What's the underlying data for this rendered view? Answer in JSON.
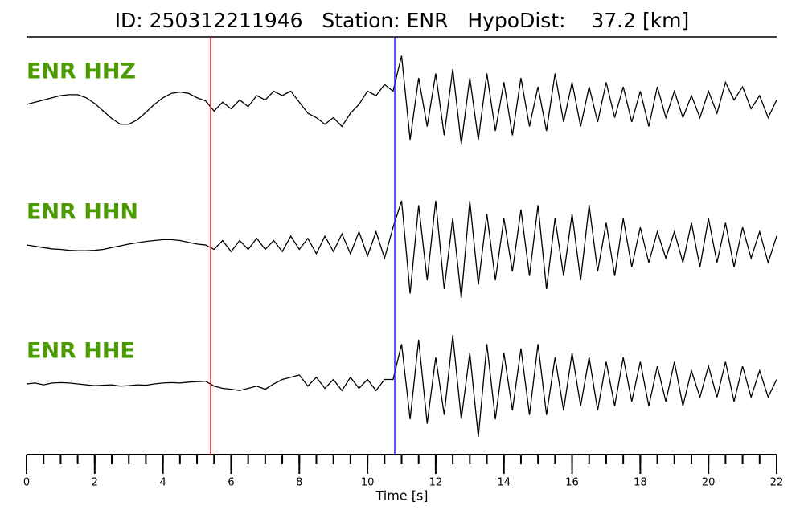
{
  "chart_data": {
    "type": "seismogram",
    "title": "ID: 250312211946   Station: ENR   HypoDist:    37.2 [km]",
    "xlabel": "Time [s]",
    "xlim": [
      0,
      22
    ],
    "xticks": [
      0,
      2,
      4,
      6,
      8,
      10,
      12,
      14,
      16,
      18,
      20,
      22
    ],
    "xminorticks": [
      0,
      0.5,
      1,
      1.5,
      2,
      2.5,
      3,
      3.5,
      4,
      4.5,
      5,
      5.5,
      6,
      6.5,
      7,
      7.5,
      8,
      8.5,
      9,
      9.5,
      10,
      10.5,
      11,
      11.5,
      12,
      12.5,
      13,
      13.5,
      14,
      14.5,
      15,
      15.5,
      16,
      16.5,
      17,
      17.5,
      18,
      18.5,
      19,
      19.5,
      20,
      20.5,
      21,
      21.5,
      22
    ],
    "label_color": "#4a9a00",
    "markers": [
      {
        "x": 5.4,
        "color": "#e31a1c"
      },
      {
        "x": 10.8,
        "color": "#1f1fff"
      }
    ],
    "x": [
      0,
      0.25,
      0.5,
      0.75,
      1,
      1.25,
      1.5,
      1.75,
      2,
      2.25,
      2.5,
      2.75,
      3,
      3.25,
      3.5,
      3.75,
      4,
      4.25,
      4.5,
      4.75,
      5,
      5.25,
      5.5,
      5.75,
      6,
      6.25,
      6.5,
      6.75,
      7,
      7.25,
      7.5,
      7.75,
      8,
      8.25,
      8.5,
      8.75,
      9,
      9.25,
      9.5,
      9.75,
      10,
      10.25,
      10.5,
      10.75,
      11,
      11.25,
      11.5,
      11.75,
      12,
      12.25,
      12.5,
      12.75,
      13,
      13.25,
      13.5,
      13.75,
      14,
      14.25,
      14.5,
      14.75,
      15,
      15.25,
      15.5,
      15.75,
      16,
      16.25,
      16.5,
      16.75,
      17,
      17.25,
      17.5,
      17.75,
      18,
      18.25,
      18.5,
      18.75,
      19,
      19.25,
      19.5,
      19.75,
      20,
      20.25,
      20.5,
      20.75,
      21,
      21.25,
      21.5,
      21.75,
      22
    ],
    "series": [
      {
        "name": "ENR HHZ",
        "color": "#000000",
        "values": [
          0,
          0.05,
          0.1,
          0.15,
          0.2,
          0.22,
          0.22,
          0.15,
          0.02,
          -0.15,
          -0.32,
          -0.45,
          -0.45,
          -0.35,
          -0.18,
          0,
          0.15,
          0.25,
          0.28,
          0.25,
          0.15,
          0.08,
          -0.15,
          0.05,
          -0.1,
          0.1,
          -0.05,
          0.2,
          0.1,
          0.3,
          0.2,
          0.3,
          0.05,
          -0.2,
          -0.3,
          -0.45,
          -0.3,
          -0.5,
          -0.2,
          0,
          0.3,
          0.2,
          0.45,
          0.3,
          1.1,
          -0.8,
          0.6,
          -0.5,
          0.7,
          -0.7,
          0.8,
          -0.9,
          0.6,
          -0.8,
          0.7,
          -0.6,
          0.5,
          -0.7,
          0.6,
          -0.5,
          0.4,
          -0.6,
          0.7,
          -0.4,
          0.5,
          -0.5,
          0.4,
          -0.4,
          0.5,
          -0.3,
          0.4,
          -0.4,
          0.3,
          -0.5,
          0.4,
          -0.3,
          0.3,
          -0.3,
          0.2,
          -0.3,
          0.3,
          -0.2,
          0.5,
          0.1,
          0.4,
          -0.1,
          0.2,
          -0.3,
          0.1
        ]
      },
      {
        "name": "ENR HHN",
        "color": "#000000",
        "values": [
          0,
          -0.03,
          -0.06,
          -0.09,
          -0.1,
          -0.12,
          -0.13,
          -0.13,
          -0.12,
          -0.1,
          -0.06,
          -0.02,
          0.02,
          0.05,
          0.08,
          0.1,
          0.12,
          0.12,
          0.1,
          0.06,
          0.02,
          0,
          -0.1,
          0.1,
          -0.15,
          0.1,
          -0.1,
          0.15,
          -0.1,
          0.1,
          -0.15,
          0.2,
          -0.1,
          0.15,
          -0.2,
          0.2,
          -0.15,
          0.25,
          -0.2,
          0.3,
          -0.25,
          0.3,
          -0.3,
          0.4,
          1.0,
          -1.1,
          0.9,
          -0.8,
          1.0,
          -1.0,
          0.6,
          -1.2,
          1.0,
          -0.9,
          0.7,
          -0.8,
          0.6,
          -0.6,
          0.8,
          -0.7,
          0.9,
          -1.0,
          0.6,
          -0.7,
          0.7,
          -0.8,
          0.9,
          -0.6,
          0.5,
          -0.7,
          0.6,
          -0.5,
          0.4,
          -0.4,
          0.3,
          -0.3,
          0.3,
          -0.4,
          0.5,
          -0.5,
          0.6,
          -0.4,
          0.5,
          -0.5,
          0.4,
          -0.3,
          0.3,
          -0.4,
          0.2
        ]
      },
      {
        "name": "ENR HHE",
        "color": "#000000",
        "values": [
          0,
          0.02,
          -0.02,
          0.02,
          0.03,
          0.02,
          0,
          -0.02,
          -0.04,
          -0.03,
          -0.02,
          -0.05,
          -0.04,
          -0.02,
          -0.03,
          0,
          0.02,
          0.03,
          0.02,
          0.04,
          0.05,
          0.06,
          -0.05,
          -0.1,
          -0.12,
          -0.15,
          -0.1,
          -0.05,
          -0.12,
          0,
          0.1,
          0.15,
          0.2,
          -0.05,
          0.15,
          -0.1,
          0.1,
          -0.15,
          0.15,
          -0.1,
          0.1,
          -0.15,
          0.1,
          0.1,
          0.9,
          -0.8,
          1.0,
          -0.9,
          0.6,
          -0.7,
          1.1,
          -0.8,
          0.7,
          -1.2,
          0.9,
          -0.8,
          0.7,
          -0.6,
          0.8,
          -0.7,
          0.9,
          -0.7,
          0.6,
          -0.6,
          0.7,
          -0.5,
          0.6,
          -0.6,
          0.5,
          -0.5,
          0.6,
          -0.4,
          0.5,
          -0.5,
          0.4,
          -0.4,
          0.5,
          -0.5,
          0.3,
          -0.3,
          0.4,
          -0.3,
          0.5,
          -0.4,
          0.4,
          -0.3,
          0.3,
          -0.3,
          0.1
        ]
      }
    ]
  }
}
